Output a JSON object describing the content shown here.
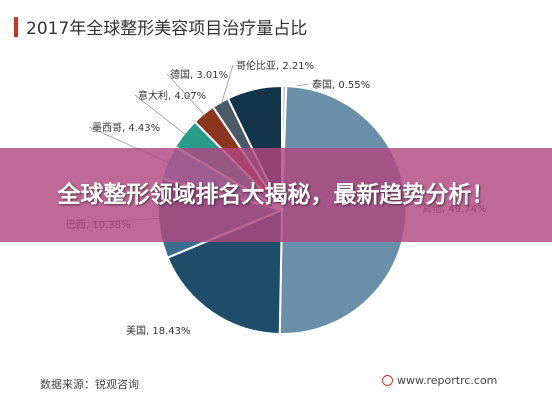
{
  "page": {
    "headline": "全球整形领域排名大揭秘，最新趋势分析！",
    "overlay_color": "#b04880"
  },
  "chart_data": {
    "type": "pie",
    "title": "2017年全球整形美容项目治疗量占比",
    "accent_color": "#c0392b",
    "slices": [
      {
        "label": "泰国, 0.55%",
        "value": 0.55,
        "color": "#c9d6df"
      },
      {
        "label": "其他, 49.74%",
        "value": 49.74,
        "color": "#6a8fa8"
      },
      {
        "label": "美国, 18.43%",
        "value": 18.43,
        "color": "#1f4e6b"
      },
      {
        "label": "巴西, 10.38%",
        "value": 10.38,
        "color": "#3c6e8f"
      },
      {
        "label": "墨西哥, 4.43%",
        "value": 4.43,
        "color": "#5ab4d6"
      },
      {
        "label": "意大利, 4.07%",
        "value": 4.07,
        "color": "#2a9c8a"
      },
      {
        "label": "德国, 3.01%",
        "value": 3.01,
        "color": "#8b3420"
      },
      {
        "label": "哥伦比亚, 2.21%",
        "value": 2.21,
        "color": "#4a5a66"
      },
      {
        "label": "",
        "value": 7.18,
        "color": "#13344a"
      }
    ],
    "source": "数据来源：锐观咨询",
    "site": "www.reportrc.com"
  }
}
